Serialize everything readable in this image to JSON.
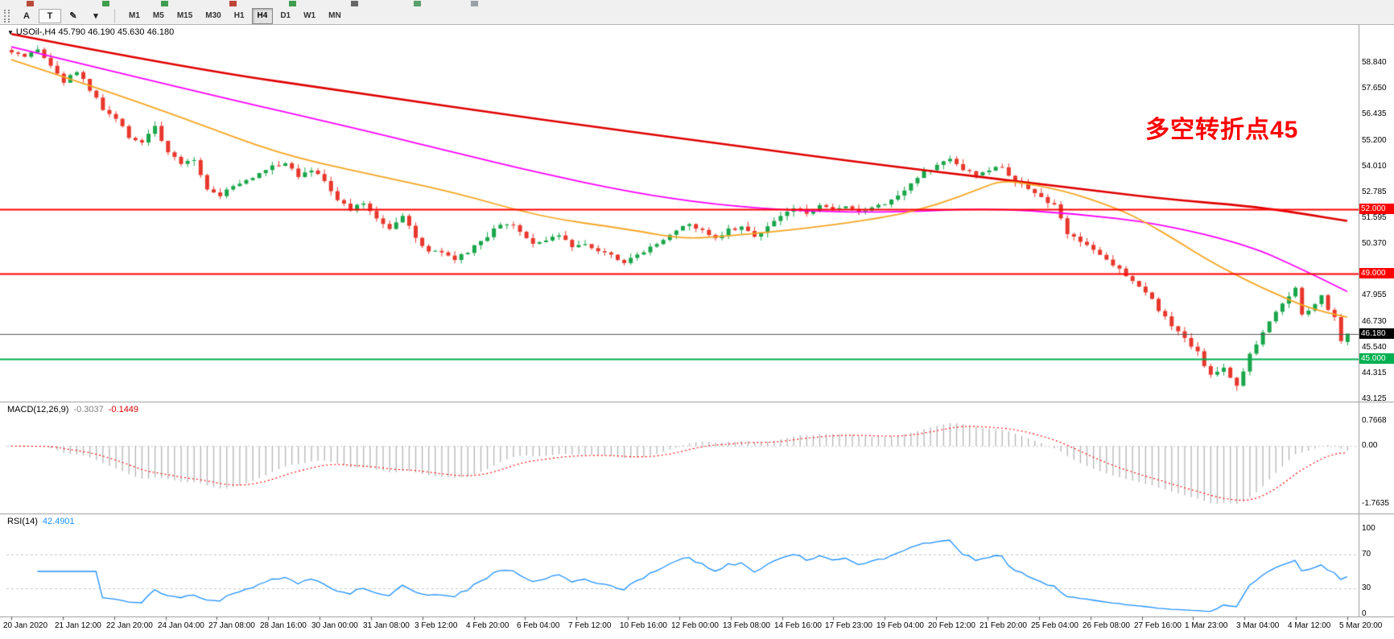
{
  "toolbar": {
    "icon_fragments": [
      {
        "x": 33,
        "color": "#b94a3a"
      },
      {
        "x": 127,
        "color": "#3f9e4d"
      },
      {
        "x": 200,
        "color": "#3f9e4d"
      },
      {
        "x": 285,
        "color": "#c04438"
      },
      {
        "x": 359,
        "color": "#3f9e4d"
      },
      {
        "x": 436,
        "color": "#666666"
      },
      {
        "x": 514,
        "color": "#58a06a"
      },
      {
        "x": 585,
        "color": "#9aa0a6"
      }
    ],
    "tools": [
      {
        "name": "text-annotation-tool",
        "label": "A",
        "boxed": false
      },
      {
        "name": "text-label-tool",
        "label": "T",
        "boxed": true
      },
      {
        "name": "draw-tool",
        "label": "✎",
        "boxed": false
      },
      {
        "name": "draw-tool-dropdown",
        "label": "▾",
        "boxed": false
      }
    ],
    "timeframes": [
      {
        "label": "M1",
        "active": false
      },
      {
        "label": "M5",
        "active": false
      },
      {
        "label": "M15",
        "active": false
      },
      {
        "label": "M30",
        "active": false
      },
      {
        "label": "H1",
        "active": false
      },
      {
        "label": "H4",
        "active": true
      },
      {
        "label": "D1",
        "active": false
      },
      {
        "label": "W1",
        "active": false
      },
      {
        "label": "MN",
        "active": false
      }
    ]
  },
  "chart": {
    "collapse_icon": "▼",
    "title": "USOil-,H4 45.790 46.190 45.630 46.180",
    "annotation": {
      "text": "多空转折点45",
      "color": "#fe0000"
    }
  },
  "indicators": {
    "macd": {
      "name": "MACD(12,26,9)",
      "main_value": "-0.3037",
      "signal_value": "-0.1449"
    },
    "rsi": {
      "name": "RSI(14)",
      "value": "42.4901"
    }
  },
  "chart_data": [
    {
      "type": "candlestick",
      "symbol": "USOil-",
      "timeframe": "H4",
      "bars": 206,
      "up_color": "#19a64a",
      "down_color": "#e8372c",
      "axis": {
        "price_top": 60.66,
        "price_bottom": 43.0
      },
      "last_bar": {
        "o": 45.79,
        "h": 46.19,
        "l": 45.63,
        "c": 46.18
      },
      "price_path_anchors": [
        [
          0,
          59.3
        ],
        [
          2,
          59.05
        ],
        [
          4,
          59.45
        ],
        [
          6,
          58.7
        ],
        [
          8,
          57.95
        ],
        [
          10,
          58.45
        ],
        [
          12,
          57.6
        ],
        [
          14,
          56.65
        ],
        [
          16,
          56.2
        ],
        [
          18,
          55.4
        ],
        [
          20,
          55.15
        ],
        [
          22,
          55.9
        ],
        [
          24,
          54.6
        ],
        [
          26,
          54.1
        ],
        [
          28,
          54.35
        ],
        [
          30,
          52.95
        ],
        [
          32,
          52.65
        ],
        [
          34,
          53.1
        ],
        [
          37,
          53.45
        ],
        [
          40,
          54.05
        ],
        [
          42,
          54.2
        ],
        [
          44,
          53.6
        ],
        [
          46,
          53.9
        ],
        [
          48,
          53.3
        ],
        [
          50,
          52.5
        ],
        [
          52,
          51.95
        ],
        [
          54,
          52.3
        ],
        [
          56,
          51.6
        ],
        [
          58,
          51.15
        ],
        [
          60,
          51.7
        ],
        [
          62,
          50.6
        ],
        [
          64,
          50.05
        ],
        [
          66,
          49.95
        ],
        [
          68,
          49.6
        ],
        [
          70,
          50.0
        ],
        [
          72,
          50.45
        ],
        [
          74,
          51.0
        ],
        [
          76,
          51.35
        ],
        [
          78,
          50.95
        ],
        [
          80,
          50.35
        ],
        [
          82,
          50.6
        ],
        [
          84,
          50.7
        ],
        [
          86,
          50.25
        ],
        [
          88,
          50.45
        ],
        [
          90,
          50.1
        ],
        [
          92,
          49.9
        ],
        [
          94,
          49.55
        ],
        [
          96,
          49.85
        ],
        [
          98,
          50.3
        ],
        [
          100,
          50.6
        ],
        [
          102,
          51.0
        ],
        [
          104,
          51.25
        ],
        [
          106,
          51.0
        ],
        [
          108,
          50.7
        ],
        [
          110,
          51.05
        ],
        [
          112,
          51.15
        ],
        [
          114,
          50.75
        ],
        [
          116,
          51.2
        ],
        [
          118,
          51.7
        ],
        [
          120,
          52.0
        ],
        [
          122,
          51.85
        ],
        [
          124,
          52.1
        ],
        [
          126,
          51.95
        ],
        [
          128,
          52.05
        ],
        [
          130,
          51.8
        ],
        [
          132,
          52.15
        ],
        [
          134,
          52.3
        ],
        [
          136,
          52.7
        ],
        [
          138,
          53.2
        ],
        [
          140,
          53.75
        ],
        [
          142,
          54.0
        ],
        [
          144,
          54.45
        ],
        [
          146,
          53.9
        ],
        [
          148,
          53.55
        ],
        [
          150,
          53.8
        ],
        [
          152,
          54.0
        ],
        [
          154,
          53.3
        ],
        [
          156,
          52.9
        ],
        [
          158,
          52.55
        ],
        [
          160,
          52.2
        ],
        [
          162,
          50.9
        ],
        [
          164,
          50.5
        ],
        [
          166,
          50.15
        ],
        [
          168,
          49.6
        ],
        [
          170,
          49.2
        ],
        [
          172,
          48.7
        ],
        [
          174,
          48.2
        ],
        [
          176,
          47.3
        ],
        [
          178,
          46.5
        ],
        [
          180,
          45.9
        ],
        [
          182,
          45.3
        ],
        [
          184,
          44.2
        ],
        [
          186,
          44.6
        ],
        [
          188,
          43.8
        ],
        [
          190,
          45.2
        ],
        [
          192,
          46.3
        ],
        [
          194,
          47.2
        ],
        [
          196,
          47.9
        ],
        [
          197,
          48.3
        ],
        [
          198,
          47.1
        ],
        [
          200,
          47.6
        ],
        [
          201,
          47.9
        ],
        [
          202,
          47.3
        ],
        [
          203,
          46.9
        ],
        [
          204,
          45.85
        ],
        [
          205,
          46.18
        ]
      ],
      "overlays": [
        {
          "name": "ma-slow",
          "color": "#e00000",
          "width": 2.6,
          "points": [
            [
              0,
              60.2
            ],
            [
              27,
              58.6
            ],
            [
              54,
              57.4
            ],
            [
              81,
              56.2
            ],
            [
              108,
              55.1
            ],
            [
              135,
              54.0
            ],
            [
              163,
              53.0
            ],
            [
              176,
              52.5
            ],
            [
              190,
              52.15
            ],
            [
              198,
              51.8
            ],
            [
              205,
              51.45
            ]
          ]
        },
        {
          "name": "ma-mid",
          "color": "#ff00ff",
          "width": 1.8,
          "points": [
            [
              0,
              59.6
            ],
            [
              27,
              57.6
            ],
            [
              54,
              55.7
            ],
            [
              70,
              54.5
            ],
            [
              81,
              53.7
            ],
            [
              95,
              52.8
            ],
            [
              108,
              52.2
            ],
            [
              122,
              51.9
            ],
            [
              135,
              51.85
            ],
            [
              150,
              52.05
            ],
            [
              163,
              51.8
            ],
            [
              176,
              51.35
            ],
            [
              190,
              50.3
            ],
            [
              198,
              49.2
            ],
            [
              205,
              48.15
            ]
          ]
        },
        {
          "name": "ma-fast",
          "color": "#f5a623",
          "width": 1.8,
          "points": [
            [
              0,
              59.0
            ],
            [
              14,
              57.6
            ],
            [
              27,
              56.2
            ],
            [
              41,
              54.6
            ],
            [
              54,
              53.7
            ],
            [
              68,
              52.8
            ],
            [
              81,
              51.65
            ],
            [
              95,
              51.05
            ],
            [
              103,
              50.6
            ],
            [
              110,
              50.75
            ],
            [
              122,
              51.1
            ],
            [
              135,
              51.65
            ],
            [
              142,
              52.2
            ],
            [
              149,
              53.0
            ],
            [
              152,
              53.35
            ],
            [
              157,
              53.15
            ],
            [
              163,
              52.75
            ],
            [
              170,
              52.0
            ],
            [
              174,
              51.4
            ],
            [
              179,
              50.5
            ],
            [
              184,
              49.55
            ],
            [
              190,
              48.6
            ],
            [
              194,
              48.05
            ],
            [
              198,
              47.5
            ],
            [
              202,
              47.15
            ],
            [
              205,
              46.95
            ]
          ]
        }
      ],
      "hlines": [
        {
          "price": 52.0,
          "color": "#ff0000",
          "width": 2
        },
        {
          "price": 49.0,
          "color": "#ff0000",
          "width": 2
        },
        {
          "price": 45.0,
          "color": "#00b050",
          "width": 2
        },
        {
          "price": 46.18,
          "color": "#555555",
          "width": 1
        }
      ],
      "y_ticks": [
        "58.840",
        "57.650",
        "56.435",
        "55.200",
        "54.010",
        "52.785",
        "51.595",
        "50.370",
        "47.955",
        "46.730",
        "45.540",
        "44.315",
        "43.125"
      ],
      "badges": [
        {
          "label": "52.000",
          "price": 52.0,
          "bg": "#ff0000"
        },
        {
          "label": "49.000",
          "price": 49.0,
          "bg": "#ff0000"
        },
        {
          "label": "46.180",
          "price": 46.18,
          "bg": "#000000"
        },
        {
          "label": "45.000",
          "price": 45.0,
          "bg": "#00b050"
        }
      ],
      "x_labels": [
        "20 Jan 2020",
        "21 Jan 12:00",
        "22 Jan 20:00",
        "24 Jan 04:00",
        "27 Jan 08:00",
        "28 Jan 16:00",
        "30 Jan 00:00",
        "31 Jan 08:00",
        "3 Feb 12:00",
        "4 Feb 20:00",
        "6 Feb 04:00",
        "7 Feb 12:00",
        "10 Feb 16:00",
        "12 Feb 00:00",
        "13 Feb 08:00",
        "14 Feb 16:00",
        "17 Feb 23:00",
        "19 Feb 04:00",
        "20 Feb 12:00",
        "21 Feb 20:00",
        "25 Feb 04:00",
        "26 Feb 08:00",
        "27 Feb 16:00",
        "1 Mar 23:00",
        "3 Mar 04:00",
        "4 Mar 12:00",
        "5 Mar 20:00"
      ]
    },
    {
      "type": "histogram",
      "name": "MACD",
      "params": [
        12,
        26,
        9
      ],
      "scale_max": 0.7668,
      "scale_min": -1.7635,
      "hist_color": "#b4b4b4",
      "signal_color": "#ff0000",
      "current_main": -0.3037,
      "current_signal": -0.1449,
      "ticks": [
        {
          "label": "0.7668",
          "v": 0.7668
        },
        {
          "label": "0.00",
          "v": 0
        },
        {
          "label": "-1.7635",
          "v": -1.7635
        }
      ]
    },
    {
      "type": "line",
      "name": "RSI",
      "period": 14,
      "range": [
        0,
        100
      ],
      "levels": [
        70,
        30
      ],
      "color": "#1e90ff",
      "current": 42.4901,
      "ticks": [
        {
          "label": "100",
          "v": 100
        },
        {
          "label": "70",
          "v": 70
        },
        {
          "label": "30",
          "v": 30
        },
        {
          "label": "0",
          "v": 0
        }
      ]
    }
  ]
}
